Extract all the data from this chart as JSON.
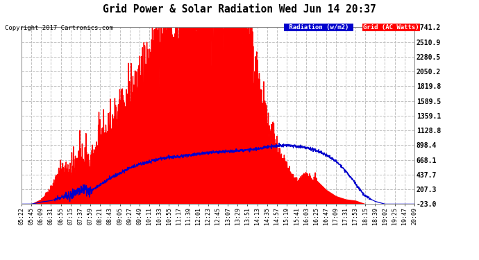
{
  "title": "Grid Power & Solar Radiation Wed Jun 14 20:37",
  "copyright": "Copyright 2017 Cartronics.com",
  "legend_radiation": "Radiation (w/m2)",
  "legend_grid": "Grid (AC Watts)",
  "bg_color": "#ffffff",
  "plot_bg_color": "#ffffff",
  "grid_color": "#c0c0c0",
  "radiation_fill_color": "#ff0000",
  "grid_line_color": "#0000cc",
  "yticks": [
    -23.0,
    207.3,
    437.7,
    668.1,
    898.4,
    1128.8,
    1359.1,
    1589.5,
    1819.8,
    2050.2,
    2280.5,
    2510.9,
    2741.2
  ],
  "ymin": -23.0,
  "ymax": 2741.2,
  "time_labels": [
    "05:22",
    "05:45",
    "06:09",
    "06:31",
    "06:55",
    "07:15",
    "07:37",
    "07:59",
    "08:21",
    "08:43",
    "09:05",
    "09:27",
    "09:49",
    "10:11",
    "10:33",
    "10:55",
    "11:17",
    "11:39",
    "12:01",
    "12:23",
    "12:45",
    "13:07",
    "13:29",
    "13:51",
    "14:13",
    "14:35",
    "14:57",
    "15:19",
    "15:41",
    "16:03",
    "16:25",
    "16:47",
    "17:09",
    "17:31",
    "17:53",
    "18:15",
    "18:39",
    "19:02",
    "19:25",
    "19:47",
    "20:09"
  ]
}
